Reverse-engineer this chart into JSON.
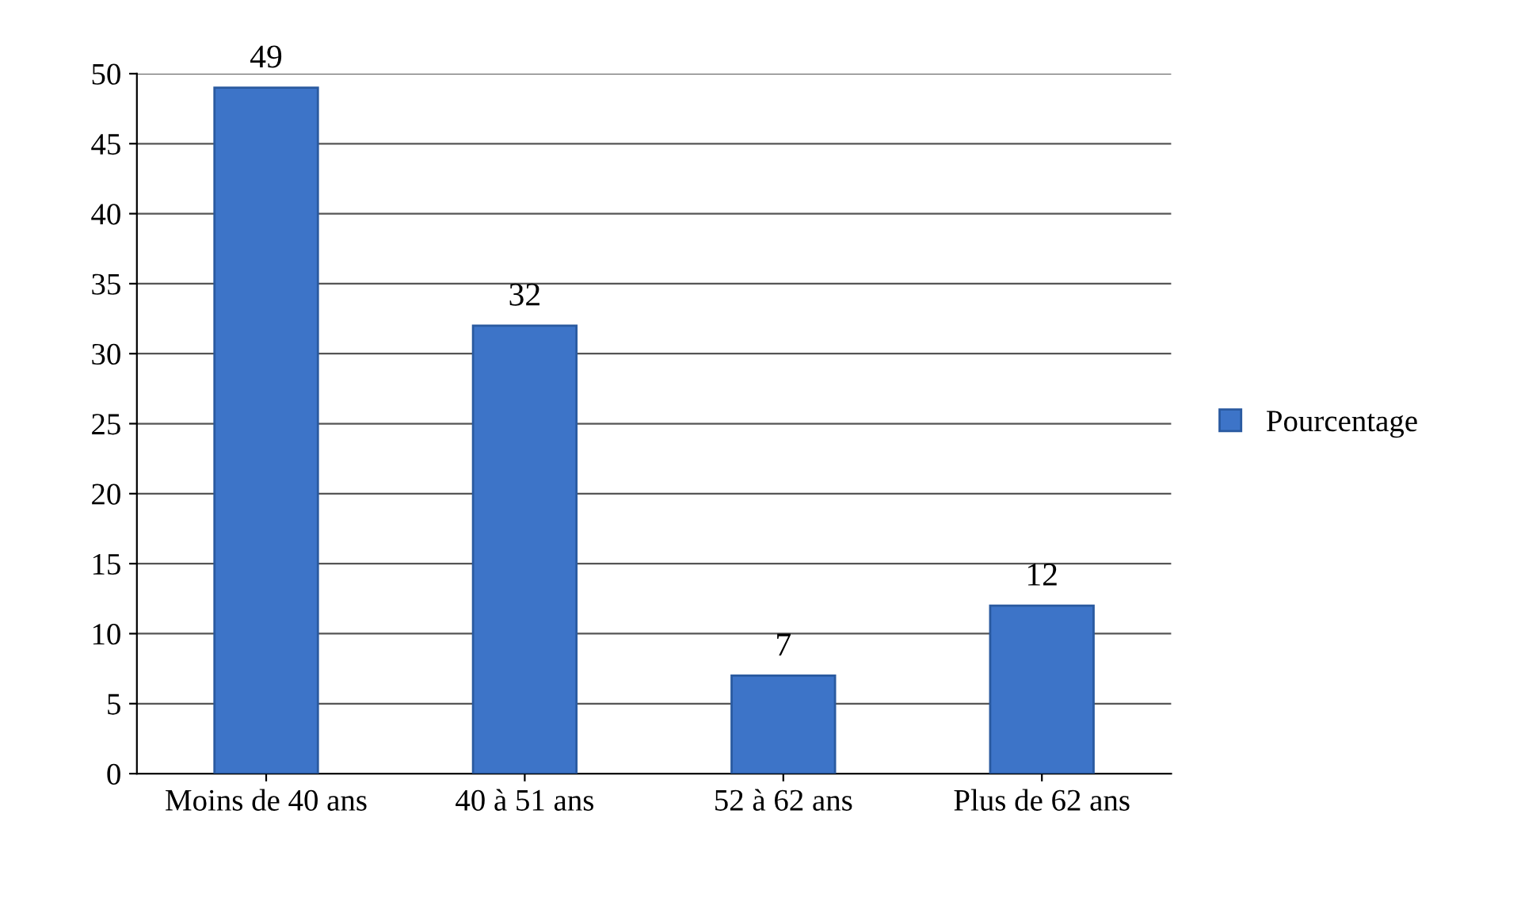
{
  "chart_data": {
    "type": "bar",
    "categories": [
      "Moins de 40 ans",
      "40 à 51 ans",
      "52 à 62 ans",
      "Plus de 62 ans"
    ],
    "series": [
      {
        "name": "Pourcentage",
        "color": "#3d74c8",
        "values": [
          49,
          32,
          7,
          12
        ]
      }
    ],
    "ylim": [
      0,
      50
    ],
    "yticks": [
      0,
      5,
      10,
      15,
      20,
      25,
      30,
      35,
      40,
      45,
      50
    ],
    "grid": "y",
    "legend": "right",
    "data_labels": true
  }
}
